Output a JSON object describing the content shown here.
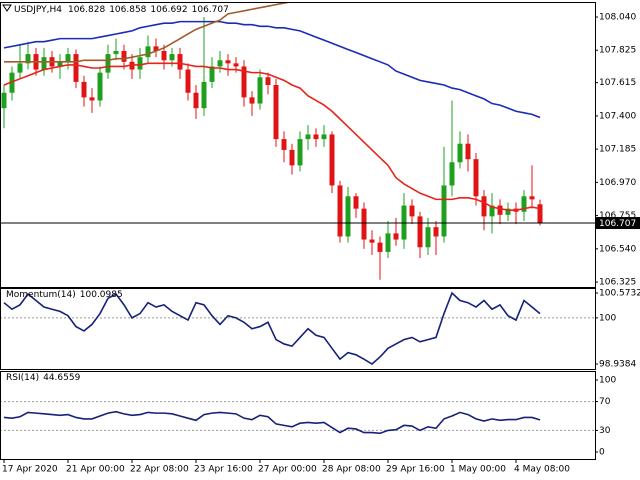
{
  "chart_data": [
    {
      "type": "candlestick",
      "title": "USDJPY,H4",
      "categories": [
        "17 Apr 2020",
        null,
        null,
        null,
        null,
        null,
        null,
        null,
        "21 Apr 00:00",
        null,
        null,
        null,
        null,
        null,
        null,
        null,
        "22 Apr 08:00",
        null,
        null,
        null,
        null,
        null,
        null,
        null,
        "23 Apr 16:00",
        null,
        null,
        null,
        null,
        null,
        null,
        null,
        "27 Apr 00:00",
        null,
        null,
        null,
        null,
        null,
        null,
        null,
        "28 Apr 08:00",
        null,
        null,
        null,
        null,
        null,
        null,
        null,
        "29 Apr 16:00",
        null,
        null,
        null,
        null,
        null,
        null,
        null,
        "1 May 00:00",
        null,
        null,
        null,
        null,
        null,
        null,
        null,
        "4 May 08:00",
        null,
        null,
        null
      ],
      "open": [
        107.45,
        107.55,
        107.68,
        107.74,
        107.8,
        107.7,
        107.78,
        107.72,
        107.75,
        107.8,
        107.62,
        107.52,
        107.5,
        107.68,
        107.8,
        107.82,
        107.75,
        107.7,
        107.78,
        107.85,
        107.82,
        107.76,
        107.8,
        107.7,
        107.55,
        107.45,
        107.62,
        107.72,
        107.76,
        107.74,
        107.72,
        107.52,
        107.48,
        107.65,
        107.6,
        107.25,
        107.18,
        107.08,
        107.25,
        107.28,
        107.25,
        107.28,
        106.95,
        106.62,
        106.88,
        106.8,
        106.6,
        106.58,
        106.52,
        106.64,
        106.6,
        106.82,
        106.75,
        106.55,
        106.68,
        106.62,
        106.95,
        107.1,
        107.22,
        107.12,
        106.88,
        106.75,
        106.82,
        106.76,
        106.8,
        106.78,
        106.88,
        106.828
      ],
      "high": [
        107.6,
        107.72,
        107.86,
        107.88,
        107.84,
        107.84,
        107.82,
        107.8,
        107.84,
        107.83,
        107.66,
        107.58,
        107.72,
        107.86,
        107.9,
        107.86,
        107.8,
        107.84,
        107.92,
        107.9,
        107.86,
        107.84,
        107.84,
        107.74,
        107.6,
        108.04,
        107.78,
        107.82,
        107.8,
        107.78,
        107.76,
        107.56,
        107.7,
        107.68,
        107.64,
        107.3,
        107.22,
        107.3,
        107.34,
        107.32,
        107.34,
        107.3,
        106.98,
        106.94,
        106.9,
        106.84,
        106.66,
        106.62,
        106.72,
        106.74,
        106.9,
        106.86,
        106.78,
        106.74,
        106.72,
        107.2,
        107.5,
        107.3,
        107.28,
        107.16,
        106.92,
        106.9,
        106.86,
        106.84,
        106.84,
        106.92,
        107.08,
        106.858
      ],
      "low": [
        107.32,
        107.5,
        107.64,
        107.7,
        107.66,
        107.66,
        107.68,
        107.64,
        107.7,
        107.58,
        107.46,
        107.42,
        107.46,
        107.64,
        107.76,
        107.7,
        107.64,
        107.64,
        107.74,
        107.78,
        107.7,
        107.72,
        107.64,
        107.5,
        107.38,
        107.4,
        107.58,
        107.68,
        107.66,
        107.68,
        107.46,
        107.4,
        107.44,
        107.54,
        107.2,
        107.1,
        107.02,
        107.04,
        107.18,
        107.2,
        107.2,
        106.9,
        106.58,
        106.58,
        106.74,
        106.54,
        106.5,
        106.34,
        106.48,
        106.56,
        106.54,
        106.7,
        106.48,
        106.5,
        106.5,
        106.58,
        106.88,
        107.06,
        107.04,
        106.82,
        106.66,
        106.64,
        106.7,
        106.72,
        106.7,
        106.72,
        106.8,
        106.692
      ],
      "close": [
        107.55,
        107.68,
        107.74,
        107.8,
        107.7,
        107.78,
        107.72,
        107.75,
        107.8,
        107.62,
        107.52,
        107.5,
        107.68,
        107.8,
        107.82,
        107.75,
        107.7,
        107.78,
        107.85,
        107.82,
        107.76,
        107.8,
        107.7,
        107.55,
        107.45,
        107.62,
        107.72,
        107.76,
        107.74,
        107.72,
        107.52,
        107.48,
        107.65,
        107.6,
        107.25,
        107.18,
        107.08,
        107.25,
        107.28,
        107.25,
        107.28,
        106.95,
        106.62,
        106.88,
        106.8,
        106.6,
        106.58,
        106.52,
        106.64,
        106.6,
        106.82,
        106.75,
        106.55,
        106.68,
        106.62,
        106.95,
        107.1,
        107.22,
        107.12,
        106.88,
        106.75,
        106.82,
        106.76,
        106.8,
        106.78,
        106.88,
        106.86,
        106.707
      ],
      "up_color": "#1ea01e",
      "down_color": "#e01414",
      "series": [
        {
          "color": "#e8231c",
          "values": [
            107.6,
            107.62,
            107.64,
            107.66,
            107.68,
            107.7,
            107.71,
            107.72,
            107.73,
            107.73,
            107.72,
            107.71,
            107.71,
            107.72,
            107.72,
            107.72,
            107.73,
            107.73,
            107.74,
            107.74,
            107.74,
            107.74,
            107.74,
            107.73,
            107.72,
            107.72,
            107.71,
            107.71,
            107.7,
            107.7,
            107.69,
            107.68,
            107.68,
            107.67,
            107.65,
            107.63,
            107.6,
            107.58,
            107.53,
            107.5,
            107.47,
            107.43,
            107.38,
            107.33,
            107.28,
            107.23,
            107.18,
            107.13,
            107.08,
            107.0,
            106.96,
            106.93,
            106.9,
            106.88,
            106.86,
            106.86,
            106.86,
            106.87,
            106.87,
            106.86,
            106.84,
            106.81,
            106.8,
            106.79,
            106.79,
            106.8,
            106.81,
            106.8
          ]
        },
        {
          "color": "#1c2bb8",
          "values": [
            107.84,
            107.85,
            107.86,
            107.87,
            107.88,
            107.88,
            107.89,
            107.9,
            107.9,
            107.9,
            107.9,
            107.9,
            107.91,
            107.92,
            107.93,
            107.94,
            107.95,
            107.97,
            107.98,
            107.99,
            108.0,
            108.0,
            108.01,
            108.01,
            108.01,
            108.01,
            108.01,
            108.01,
            108.0,
            108.0,
            107.99,
            107.99,
            107.98,
            107.98,
            107.97,
            107.97,
            107.96,
            107.95,
            107.93,
            107.91,
            107.89,
            107.87,
            107.85,
            107.83,
            107.81,
            107.79,
            107.77,
            107.75,
            107.73,
            107.69,
            107.67,
            107.65,
            107.63,
            107.62,
            107.61,
            107.6,
            107.58,
            107.57,
            107.55,
            107.53,
            107.51,
            107.48,
            107.47,
            107.45,
            107.43,
            107.42,
            107.41,
            107.39
          ]
        },
        {
          "color": "#a35a2a",
          "values": [
            107.75,
            107.75,
            107.75,
            107.75,
            107.75,
            107.75,
            107.75,
            107.75,
            107.75,
            107.75,
            107.76,
            107.76,
            107.76,
            107.76,
            107.77,
            107.77,
            107.78,
            107.79,
            107.8,
            107.82,
            107.84,
            107.87,
            107.9,
            107.93,
            107.96,
            107.98,
            108.0,
            108.02,
            108.06,
            108.07,
            108.08,
            108.09,
            108.1,
            108.11,
            108.12,
            108.13,
            108.14,
            108.15,
            null,
            null,
            null,
            null,
            null,
            null,
            null,
            null,
            null,
            null,
            null,
            null,
            null,
            null,
            null,
            null,
            null,
            null,
            null,
            null,
            null,
            null,
            null,
            null,
            null,
            null,
            null,
            null,
            null,
            null
          ]
        }
      ],
      "ylim": [
        106.293,
        108.137
      ],
      "yticks": [
        {
          "value": 108.04,
          "label": "108.040"
        },
        107.825,
        107.615,
        {
          "value": 107.4,
          "label": "107.400"
        },
        107.185,
        {
          "value": 106.97,
          "label": "106.970"
        },
        106.755,
        {
          "value": 106.54,
          "label": "106.540"
        },
        106.325
      ],
      "current_price_line": true
    },
    {
      "type": "line",
      "title": "Momentum(14)",
      "series": [
        {
          "color": "#16217a",
          "values": [
            100.35,
            100.2,
            100.3,
            100.55,
            100.4,
            100.25,
            100.2,
            100.15,
            100.05,
            99.8,
            99.7,
            99.85,
            100.1,
            100.45,
            100.55,
            100.3,
            100.0,
            100.1,
            100.35,
            100.25,
            100.3,
            100.15,
            100.05,
            99.95,
            100.35,
            100.3,
            100.05,
            99.85,
            100.05,
            100.0,
            99.9,
            99.75,
            99.8,
            99.9,
            99.5,
            99.4,
            99.35,
            99.55,
            99.75,
            99.6,
            99.55,
            99.3,
            99.05,
            99.2,
            99.15,
            99.05,
            98.9384,
            99.1,
            99.3,
            99.4,
            99.5,
            99.55,
            99.45,
            99.5,
            99.55,
            100.1,
            100.5732,
            100.4,
            100.35,
            100.25,
            100.4,
            100.2,
            100.3,
            100.05,
            99.95,
            100.4,
            100.25,
            100.0985
          ]
        }
      ],
      "ylim": [
        98.8233,
        100.6883
      ],
      "yticks": [
        100.5732,
        100,
        98.9384
      ],
      "level_lines": true
    },
    {
      "type": "line",
      "title": "RSI(14)",
      "series": [
        {
          "color": "#16217a",
          "values": [
            48,
            47,
            49,
            55,
            54,
            53,
            52,
            51,
            52,
            48,
            46,
            46,
            50,
            54,
            56,
            53,
            51,
            52,
            55,
            54,
            54,
            53,
            50,
            47,
            44,
            52,
            54,
            55,
            54,
            53,
            47,
            45,
            51,
            49,
            39,
            37,
            35,
            40,
            41,
            40,
            41,
            34,
            27,
            33,
            32,
            27,
            27,
            26,
            30,
            31,
            37,
            36,
            30,
            35,
            33,
            46,
            50,
            55,
            52,
            46,
            43,
            46,
            44,
            45,
            45,
            48,
            48,
            44.6559
          ]
        }
      ],
      "ylim": [
        -9.7,
        112.5
      ],
      "yticks": [
        100,
        70,
        30,
        0
      ],
      "level_lines": true
    }
  ]
}
